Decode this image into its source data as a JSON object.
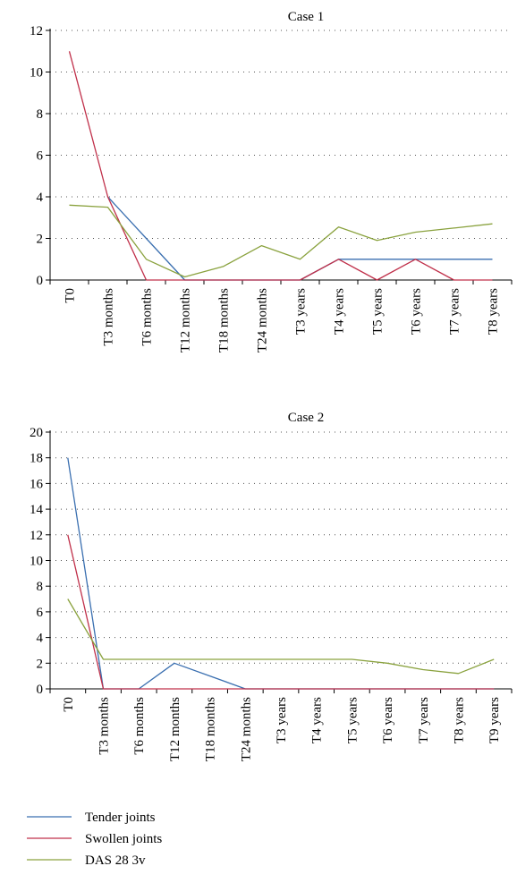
{
  "colors": {
    "tender": "#3a6fb0",
    "swollen": "#c0304a",
    "das": "#8aa23e",
    "grid": "#555555",
    "axis": "#000000"
  },
  "legend": [
    {
      "label": "Tender joints",
      "color_key": "tender"
    },
    {
      "label": "Swollen joints",
      "color_key": "swollen"
    },
    {
      "label": "DAS 28 3v",
      "color_key": "das"
    }
  ],
  "chart_data": [
    {
      "type": "line",
      "title": "Case 1",
      "xlabel": "",
      "ylabel": "",
      "ylim": [
        0,
        12
      ],
      "yticks": [
        0,
        2,
        4,
        6,
        8,
        10,
        12
      ],
      "grid": "horizontal dotted",
      "categories": [
        "T0",
        "T3 months",
        "T6 months",
        "T12 months",
        "T18 months",
        "T24 months",
        "T3 years",
        "T4 years",
        "T5 years",
        "T6 years",
        "T7 years",
        "T8 years"
      ],
      "series": [
        {
          "name": "Tender joints",
          "color_key": "tender",
          "values": [
            null,
            4,
            2,
            0,
            0,
            0,
            0,
            1,
            1,
            1,
            1,
            1
          ]
        },
        {
          "name": "Swollen joints",
          "color_key": "swollen",
          "values": [
            11,
            4,
            0,
            0,
            0,
            0,
            0,
            1,
            0,
            1,
            0,
            0
          ]
        },
        {
          "name": "DAS 28 3v",
          "color_key": "das",
          "values": [
            3.6,
            3.5,
            1.0,
            0.15,
            0.65,
            1.65,
            1.0,
            2.55,
            1.9,
            2.3,
            2.5,
            2.7
          ]
        }
      ]
    },
    {
      "type": "line",
      "title": "Case 2",
      "xlabel": "",
      "ylabel": "",
      "ylim": [
        0,
        20
      ],
      "yticks": [
        0,
        2,
        4,
        6,
        8,
        10,
        12,
        14,
        16,
        18,
        20
      ],
      "grid": "horizontal dotted",
      "categories": [
        "T0",
        "T3 months",
        "T6 months",
        "T12 months",
        "T18 months",
        "T24 months",
        "T3 years",
        "T4 years",
        "T5 years",
        "T6 years",
        "T7 years",
        "T8 years",
        "T9 years"
      ],
      "series": [
        {
          "name": "Tender joints",
          "color_key": "tender",
          "values": [
            18,
            0,
            0,
            2,
            1,
            0,
            0,
            0,
            0,
            0,
            0,
            0,
            0
          ]
        },
        {
          "name": "Swollen joints",
          "color_key": "swollen",
          "values": [
            12,
            0,
            0,
            0,
            0,
            0,
            0,
            0,
            0,
            0,
            0,
            0,
            0
          ]
        },
        {
          "name": "DAS 28 3v",
          "color_key": "das",
          "values": [
            7.0,
            2.3,
            2.3,
            2.3,
            2.3,
            2.3,
            2.3,
            2.3,
            2.3,
            2.0,
            1.5,
            1.2,
            2.3
          ]
        }
      ]
    }
  ]
}
